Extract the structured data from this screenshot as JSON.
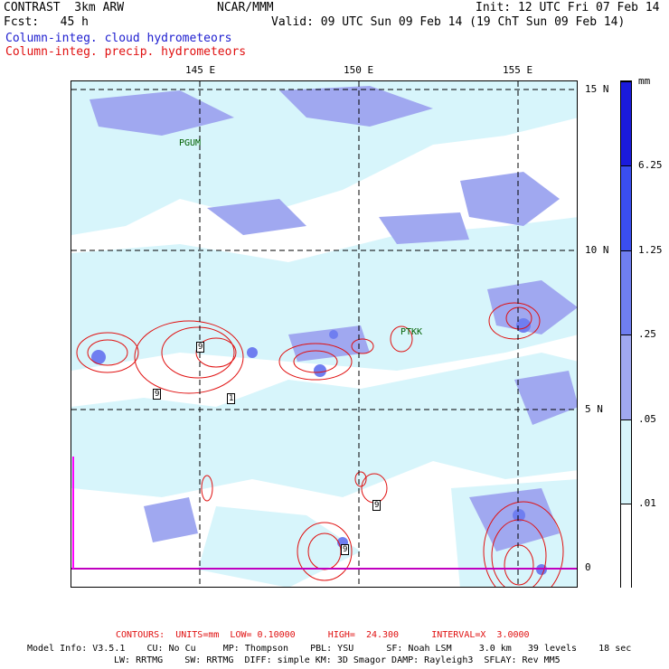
{
  "header": {
    "model": "CONTRAST  3km ARW",
    "center": "NCAR/MMM",
    "init": "Init: 12 UTC Fri 07 Feb 14",
    "fcst": "Fcst:   45 h",
    "valid": "Valid: 09 UTC Sun 09 Feb 14 (19 ChT Sun 09 Feb 14)",
    "field1": "Column-integ. cloud hydrometeors",
    "field2": "Column-integ. precip. hydrometeors"
  },
  "map": {
    "lon_labels": [
      "145 E",
      "150 E",
      "155 E"
    ],
    "lat_labels": [
      "15 N",
      "10 N",
      "5 N",
      "0"
    ],
    "stations": [
      "PGUM",
      "PTKK"
    ],
    "contour_labels": [
      "9",
      "9",
      "1",
      "9",
      "9"
    ]
  },
  "colorbar": {
    "unit": "mm",
    "levels": [
      "6.25",
      "1.25",
      ".25",
      ".05",
      ".01"
    ],
    "colors": [
      "#ffffff",
      "#d7f5fb",
      "#a0dcf0",
      "#a0a8f0",
      "#6f7ef0",
      "#3a4ef0",
      "#1a1adc"
    ]
  },
  "footer": {
    "contours": "CONTOURS:  UNITS=mm  LOW= 0.10000      HIGH=  24.300      INTERVAL=X  3.0000",
    "line1": "Model Info: V3.5.1    CU: No Cu     MP: Thompson    PBL: YSU      SF: Noah LSM     3.0 km   39 levels    18 sec",
    "line2": "LW: RRTMG    SW: RRTMG  DIFF: simple KM: 3D Smagor DAMP: Rayleigh3  SFLAY: Rev MM5"
  }
}
